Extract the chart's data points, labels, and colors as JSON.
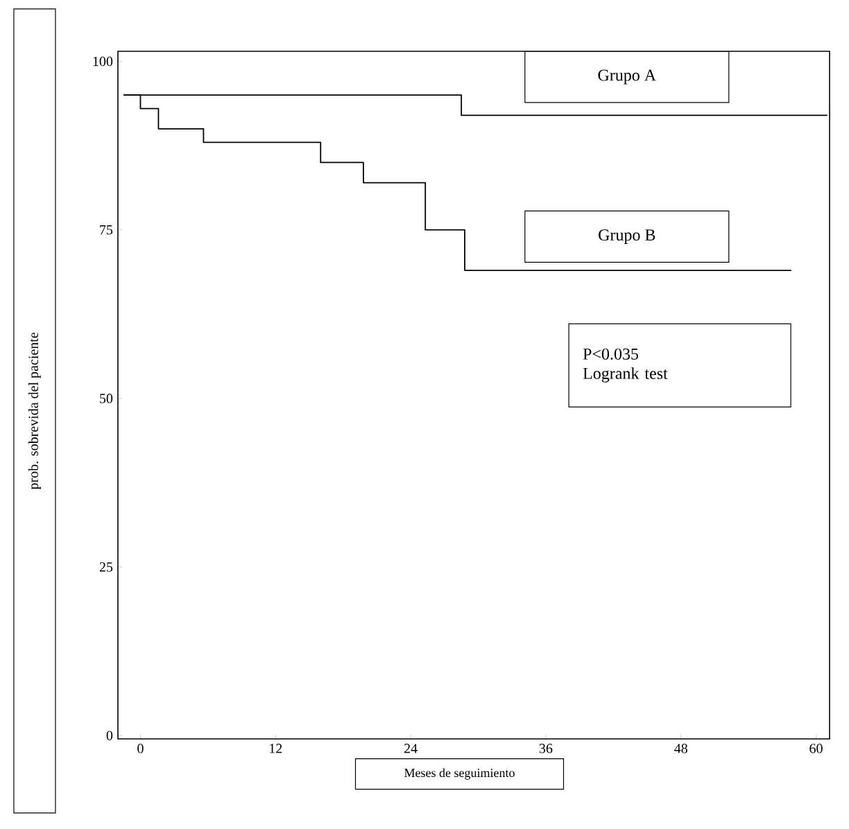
{
  "chart_data": {
    "type": "step",
    "xlabel": "Meses de seguimiento",
    "ylabel": "prob. sobrevida del paciente",
    "xlim": [
      -2,
      61.2
    ],
    "ylim": [
      -0.5,
      101.5
    ],
    "xticks": [
      0,
      12,
      24,
      36,
      48,
      60
    ],
    "yticks": [
      0,
      25,
      50,
      75,
      100
    ],
    "series": [
      {
        "name": "Grupo A",
        "color": "#000000",
        "x": [
          -1.5,
          28.5,
          61
        ],
        "values": [
          95,
          92,
          92
        ]
      },
      {
        "name": "Grupo B",
        "color": "#000000",
        "x": [
          -1.5,
          0,
          1.6,
          5.6,
          16,
          19.8,
          25.3,
          28.8,
          57.8
        ],
        "values": [
          95,
          93,
          90,
          88,
          85,
          82,
          75,
          69,
          69
        ]
      }
    ],
    "annotations": [
      "P<0.035",
      "Logrank test"
    ],
    "legend": false,
    "grid": false
  }
}
